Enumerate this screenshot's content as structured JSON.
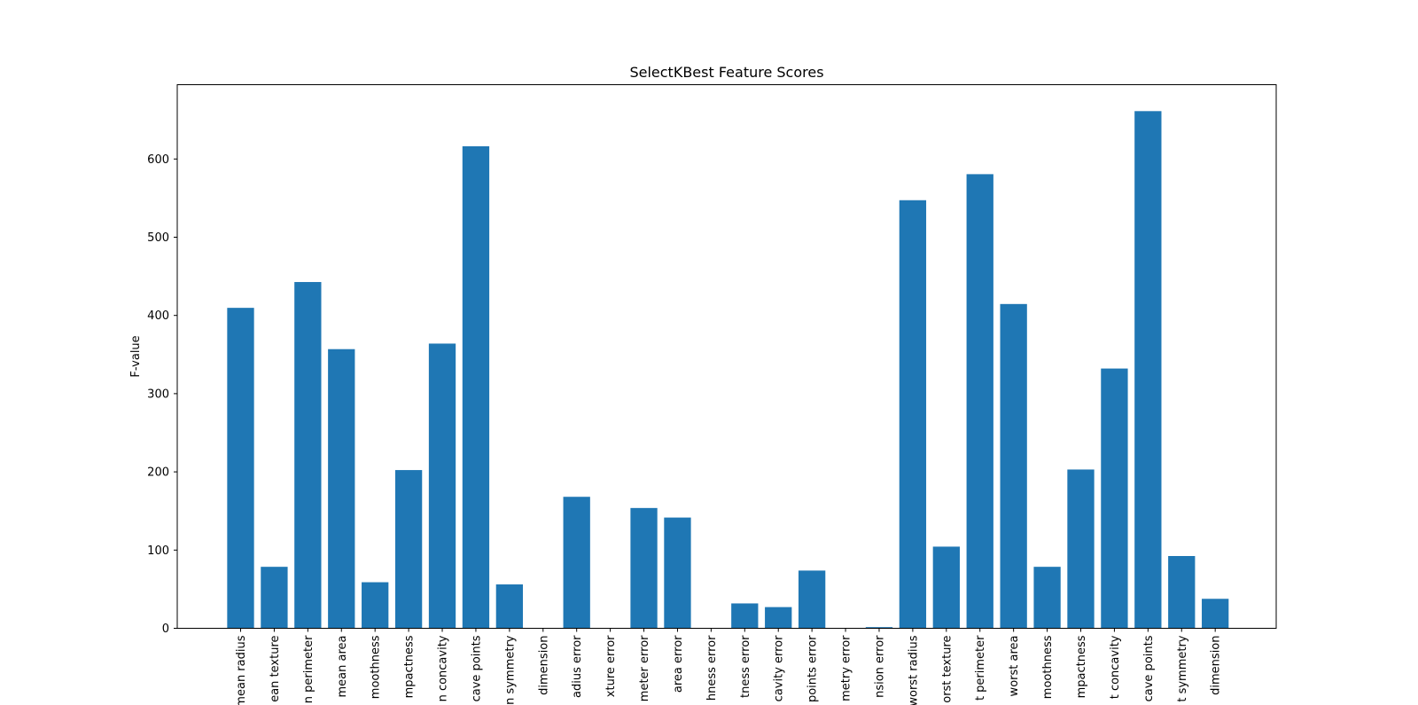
{
  "chart_data": {
    "type": "bar",
    "title": "SelectKBest Feature Scores",
    "xlabel": "",
    "ylabel": "F-value",
    "ylim": [
      0,
      695
    ],
    "yticks": [
      0,
      100,
      200,
      300,
      400,
      500,
      600
    ],
    "grid": false,
    "color": "#1f77b4",
    "categories": [
      "mean radius",
      "mean texture",
      "mean perimeter",
      "mean area",
      "mean smoothness",
      "mean compactness",
      "mean concavity",
      "mean concave points",
      "mean symmetry",
      "mean fractal dimension",
      "radius error",
      "texture error",
      "perimeter error",
      "area error",
      "smoothness error",
      "compactness error",
      "concavity error",
      "concave points error",
      "symmetry error",
      "fractal dimension error",
      "worst radius",
      "worst texture",
      "worst perimeter",
      "worst area",
      "worst smoothness",
      "worst compactness",
      "worst concavity",
      "worst concave points",
      "worst symmetry",
      "worst fractal dimension"
    ],
    "visible_labels": [
      "mean radius",
      "ean texture",
      "n perimeter",
      "mean area",
      "moothness",
      "mpactness",
      "n concavity",
      "cave points",
      "n symmetry",
      "dimension",
      "adius error",
      "xture error",
      "meter error",
      "area error",
      "hness error",
      "tness error",
      "cavity error",
      "points error",
      "metry error",
      "nsion error",
      "worst radius",
      "orst texture",
      "t perimeter",
      "worst area",
      "moothness",
      "mpactness",
      "t concavity",
      "cave points",
      "t symmetry",
      "dimension"
    ],
    "values": [
      409.7,
      78.6,
      442.7,
      356.9,
      58.9,
      202.3,
      364.0,
      616.3,
      56.1,
      0.1,
      168.1,
      0.2,
      153.8,
      141.6,
      0.3,
      31.8,
      27.1,
      73.8,
      0.3,
      1.5,
      547.3,
      104.4,
      580.6,
      414.6,
      78.6,
      203.0,
      332.1,
      661.2,
      92.4,
      37.7
    ]
  }
}
